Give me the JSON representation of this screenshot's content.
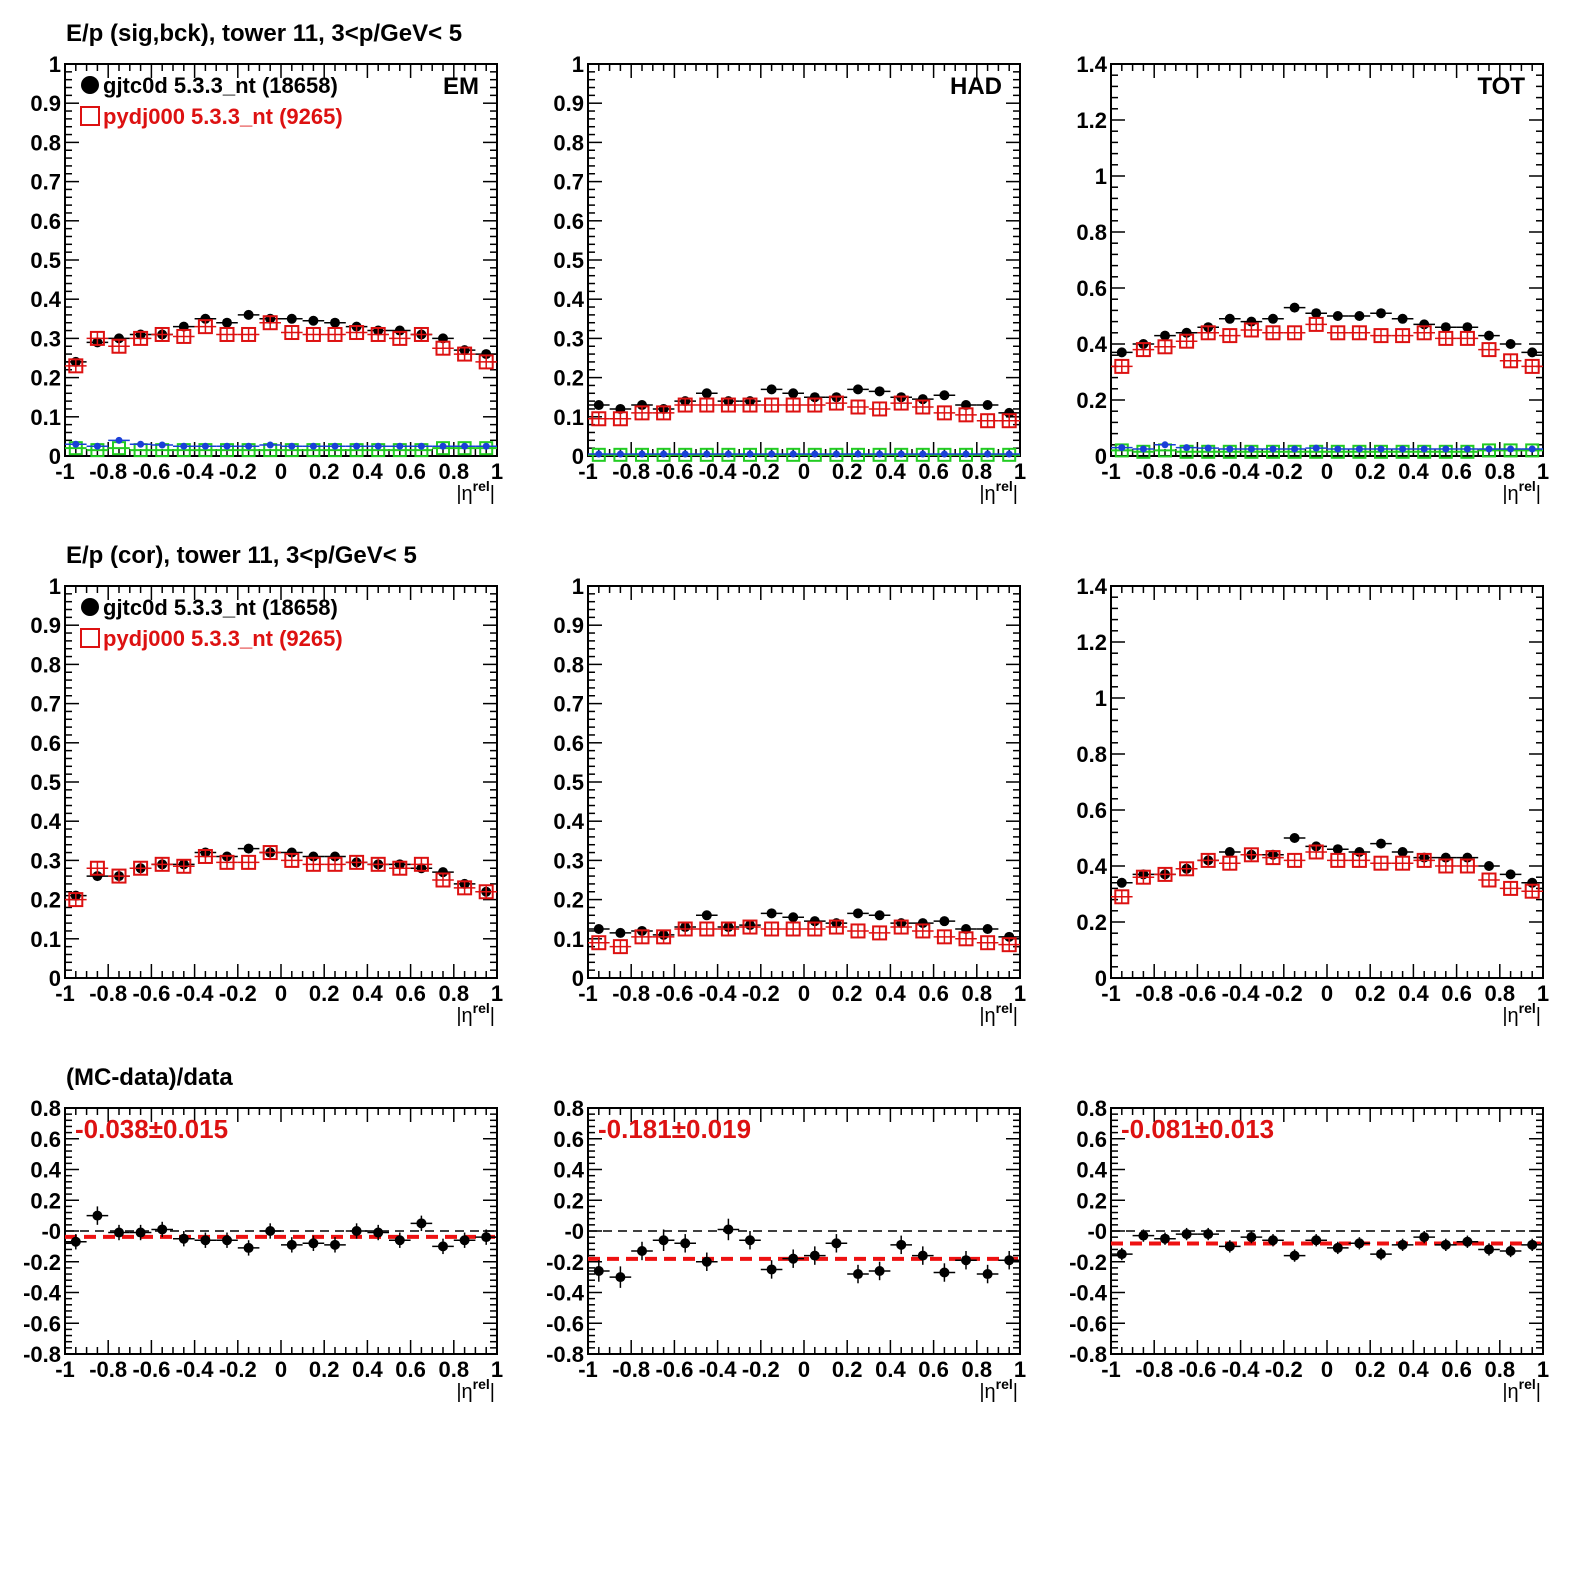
{
  "row_titles": [
    "E/p (sig,bck), tower 11,  3<p/GeV< 5",
    "E/p (cor), tower 11,  3<p/GeV< 5",
    "(MC-data)/data"
  ],
  "colors": {
    "data": "#000000",
    "mc": "#dd1111",
    "bck_data": "#1a3fd8",
    "bck_mc": "#22cc22",
    "fit_line": "#ee1111",
    "zero_line": "#000000"
  },
  "x_axis": {
    "label_main": "|η",
    "label_sup": "rel",
    "label_tail": "|",
    "range": [
      -1,
      1
    ],
    "ticks": [
      "-1",
      "-0.8",
      "-0.6",
      "-0.4",
      "-0.2",
      "0",
      "0.2",
      "0.4",
      "0.6",
      "0.8",
      "1"
    ]
  },
  "legend": {
    "data": "gjtc0d 5.3.3_nt (18658)",
    "mc": "pydj000 5.3.3_nt (9265)"
  },
  "chart_data": [
    {
      "type": "scatter",
      "panel": "sig-bck-EM",
      "label": "EM",
      "legend": true,
      "ylim": [
        0,
        1
      ],
      "ytick_labels": [
        "0",
        "0.1",
        "0.2",
        "0.3",
        "0.4",
        "0.5",
        "0.6",
        "0.7",
        "0.8",
        "0.9",
        "1"
      ],
      "x": [
        -0.95,
        -0.85,
        -0.75,
        -0.65,
        -0.55,
        -0.45,
        -0.35,
        -0.25,
        -0.15,
        -0.05,
        0.05,
        0.15,
        0.25,
        0.35,
        0.45,
        0.55,
        0.65,
        0.75,
        0.85,
        0.95
      ],
      "series": [
        {
          "name": "gjtc0d 5.3.3_nt (18658)",
          "values": [
            0.24,
            0.29,
            0.3,
            0.31,
            0.31,
            0.33,
            0.35,
            0.34,
            0.36,
            0.35,
            0.35,
            0.345,
            0.34,
            0.33,
            0.32,
            0.32,
            0.31,
            0.3,
            0.27,
            0.26
          ]
        },
        {
          "name": "pydj000 5.3.3_nt (9265)",
          "values": [
            0.23,
            0.3,
            0.28,
            0.3,
            0.31,
            0.305,
            0.33,
            0.31,
            0.31,
            0.34,
            0.315,
            0.31,
            0.31,
            0.315,
            0.31,
            0.3,
            0.31,
            0.275,
            0.26,
            0.24
          ]
        },
        {
          "values": [
            0.03,
            0.025,
            0.04,
            0.03,
            0.028,
            0.025,
            0.025,
            0.025,
            0.025,
            0.028,
            0.025,
            0.025,
            0.025,
            0.025,
            0.025,
            0.025,
            0.025,
            0.025,
            0.025,
            0.025
          ]
        },
        {
          "values": [
            0.02,
            0.015,
            0.02,
            0.015,
            0.015,
            0.015,
            0.015,
            0.015,
            0.015,
            0.015,
            0.015,
            0.015,
            0.015,
            0.015,
            0.015,
            0.015,
            0.015,
            0.02,
            0.02,
            0.02
          ]
        }
      ]
    },
    {
      "type": "scatter",
      "panel": "sig-bck-HAD",
      "label": "HAD",
      "legend": false,
      "ylim": [
        0,
        1
      ],
      "ytick_labels": [
        "0",
        "0.1",
        "0.2",
        "0.3",
        "0.4",
        "0.5",
        "0.6",
        "0.7",
        "0.8",
        "0.9",
        "1"
      ],
      "x": [
        -0.95,
        -0.85,
        -0.75,
        -0.65,
        -0.55,
        -0.45,
        -0.35,
        -0.25,
        -0.15,
        -0.05,
        0.05,
        0.15,
        0.25,
        0.35,
        0.45,
        0.55,
        0.65,
        0.75,
        0.85,
        0.95
      ],
      "series": [
        {
          "name": "gjtc0d 5.3.3_nt (18658)",
          "values": [
            0.13,
            0.12,
            0.13,
            0.12,
            0.14,
            0.16,
            0.14,
            0.14,
            0.17,
            0.16,
            0.15,
            0.15,
            0.17,
            0.165,
            0.15,
            0.145,
            0.155,
            0.13,
            0.13,
            0.11
          ]
        },
        {
          "name": "pydj000 5.3.3_nt (9265)",
          "values": [
            0.095,
            0.095,
            0.11,
            0.11,
            0.13,
            0.13,
            0.13,
            0.13,
            0.13,
            0.13,
            0.13,
            0.135,
            0.125,
            0.12,
            0.135,
            0.125,
            0.11,
            0.105,
            0.09,
            0.09
          ]
        },
        {
          "values": [
            0.005,
            0.005,
            0.005,
            0.005,
            0.005,
            0.005,
            0.005,
            0.005,
            0.005,
            0.005,
            0.005,
            0.005,
            0.005,
            0.005,
            0.005,
            0.005,
            0.005,
            0.005,
            0.005,
            0.005
          ]
        },
        {
          "values": [
            0.003,
            0.003,
            0.003,
            0.003,
            0.003,
            0.003,
            0.003,
            0.003,
            0.003,
            0.003,
            0.003,
            0.003,
            0.003,
            0.003,
            0.003,
            0.003,
            0.003,
            0.003,
            0.003,
            0.003
          ]
        }
      ]
    },
    {
      "type": "scatter",
      "panel": "sig-bck-TOT",
      "label": "TOT",
      "legend": false,
      "ylim": [
        0,
        1.4
      ],
      "ytick_labels": [
        "0",
        "0.2",
        "0.4",
        "0.6",
        "0.8",
        "1",
        "1.2",
        "1.4"
      ],
      "x": [
        -0.95,
        -0.85,
        -0.75,
        -0.65,
        -0.55,
        -0.45,
        -0.35,
        -0.25,
        -0.15,
        -0.05,
        0.05,
        0.15,
        0.25,
        0.35,
        0.45,
        0.55,
        0.65,
        0.75,
        0.85,
        0.95
      ],
      "series": [
        {
          "name": "gjtc0d 5.3.3_nt (18658)",
          "values": [
            0.37,
            0.4,
            0.43,
            0.44,
            0.46,
            0.49,
            0.48,
            0.49,
            0.53,
            0.51,
            0.5,
            0.5,
            0.51,
            0.49,
            0.47,
            0.46,
            0.46,
            0.43,
            0.4,
            0.37
          ]
        },
        {
          "name": "pydj000 5.3.3_nt (9265)",
          "values": [
            0.32,
            0.38,
            0.39,
            0.41,
            0.44,
            0.43,
            0.45,
            0.44,
            0.44,
            0.47,
            0.44,
            0.44,
            0.43,
            0.43,
            0.44,
            0.42,
            0.42,
            0.38,
            0.34,
            0.32
          ]
        },
        {
          "values": [
            0.03,
            0.025,
            0.04,
            0.03,
            0.028,
            0.025,
            0.025,
            0.025,
            0.025,
            0.028,
            0.025,
            0.025,
            0.025,
            0.025,
            0.025,
            0.025,
            0.025,
            0.025,
            0.025,
            0.025
          ]
        },
        {
          "values": [
            0.02,
            0.015,
            0.02,
            0.015,
            0.015,
            0.015,
            0.015,
            0.015,
            0.015,
            0.015,
            0.015,
            0.015,
            0.015,
            0.015,
            0.015,
            0.015,
            0.015,
            0.02,
            0.02,
            0.02
          ]
        }
      ]
    },
    {
      "type": "scatter",
      "panel": "cor-EM",
      "label": "",
      "legend": true,
      "ylim": [
        0,
        1
      ],
      "ytick_labels": [
        "0",
        "0.1",
        "0.2",
        "0.3",
        "0.4",
        "0.5",
        "0.6",
        "0.7",
        "0.8",
        "0.9",
        "1"
      ],
      "x": [
        -0.95,
        -0.85,
        -0.75,
        -0.65,
        -0.55,
        -0.45,
        -0.35,
        -0.25,
        -0.15,
        -0.05,
        0.05,
        0.15,
        0.25,
        0.35,
        0.45,
        0.55,
        0.65,
        0.75,
        0.85,
        0.95
      ],
      "series": [
        {
          "name": "gjtc0d 5.3.3_nt (18658)",
          "values": [
            0.21,
            0.26,
            0.26,
            0.28,
            0.29,
            0.29,
            0.32,
            0.31,
            0.33,
            0.32,
            0.32,
            0.31,
            0.31,
            0.295,
            0.29,
            0.29,
            0.28,
            0.27,
            0.24,
            0.22
          ]
        },
        {
          "name": "pydj000 5.3.3_nt (9265)",
          "values": [
            0.2,
            0.28,
            0.26,
            0.28,
            0.29,
            0.285,
            0.31,
            0.295,
            0.295,
            0.32,
            0.3,
            0.29,
            0.29,
            0.295,
            0.29,
            0.28,
            0.29,
            0.25,
            0.23,
            0.22
          ]
        }
      ]
    },
    {
      "type": "scatter",
      "panel": "cor-HAD",
      "label": "",
      "legend": false,
      "ylim": [
        0,
        1
      ],
      "ytick_labels": [
        "0",
        "0.1",
        "0.2",
        "0.3",
        "0.4",
        "0.5",
        "0.6",
        "0.7",
        "0.8",
        "0.9",
        "1"
      ],
      "x": [
        -0.95,
        -0.85,
        -0.75,
        -0.65,
        -0.55,
        -0.45,
        -0.35,
        -0.25,
        -0.15,
        -0.05,
        0.05,
        0.15,
        0.25,
        0.35,
        0.45,
        0.55,
        0.65,
        0.75,
        0.85,
        0.95
      ],
      "series": [
        {
          "name": "gjtc0d 5.3.3_nt (18658)",
          "values": [
            0.125,
            0.115,
            0.12,
            0.11,
            0.13,
            0.16,
            0.13,
            0.135,
            0.165,
            0.155,
            0.145,
            0.14,
            0.165,
            0.16,
            0.14,
            0.14,
            0.145,
            0.125,
            0.125,
            0.105
          ]
        },
        {
          "name": "pydj000 5.3.3_nt (9265)",
          "values": [
            0.09,
            0.08,
            0.105,
            0.105,
            0.125,
            0.125,
            0.125,
            0.13,
            0.125,
            0.125,
            0.125,
            0.13,
            0.12,
            0.115,
            0.13,
            0.12,
            0.105,
            0.1,
            0.09,
            0.085
          ]
        }
      ]
    },
    {
      "type": "scatter",
      "panel": "cor-TOT",
      "label": "",
      "legend": false,
      "ylim": [
        0,
        1.4
      ],
      "ytick_labels": [
        "0",
        "0.2",
        "0.4",
        "0.6",
        "0.8",
        "1",
        "1.2",
        "1.4"
      ],
      "x": [
        -0.95,
        -0.85,
        -0.75,
        -0.65,
        -0.55,
        -0.45,
        -0.35,
        -0.25,
        -0.15,
        -0.05,
        0.05,
        0.15,
        0.25,
        0.35,
        0.45,
        0.55,
        0.65,
        0.75,
        0.85,
        0.95
      ],
      "series": [
        {
          "name": "gjtc0d 5.3.3_nt (18658)",
          "values": [
            0.34,
            0.37,
            0.37,
            0.39,
            0.42,
            0.45,
            0.44,
            0.44,
            0.5,
            0.47,
            0.46,
            0.45,
            0.48,
            0.45,
            0.43,
            0.43,
            0.43,
            0.4,
            0.37,
            0.34
          ]
        },
        {
          "name": "pydj000 5.3.3_nt (9265)",
          "values": [
            0.29,
            0.36,
            0.37,
            0.39,
            0.42,
            0.41,
            0.44,
            0.43,
            0.42,
            0.45,
            0.42,
            0.42,
            0.41,
            0.41,
            0.42,
            0.4,
            0.4,
            0.35,
            0.32,
            0.31
          ]
        }
      ]
    },
    {
      "type": "scatter",
      "panel": "ratio-EM",
      "label": "",
      "legend": false,
      "ylim": [
        -0.8,
        0.8
      ],
      "ytick_labels": [
        "-0.8",
        "-0.6",
        "-0.4",
        "-0.2",
        "-0",
        "0.2",
        "0.4",
        "0.6",
        "0.8"
      ],
      "x": [
        -0.95,
        -0.85,
        -0.75,
        -0.65,
        -0.55,
        -0.45,
        -0.35,
        -0.25,
        -0.15,
        -0.05,
        0.05,
        0.15,
        0.25,
        0.35,
        0.45,
        0.55,
        0.65,
        0.75,
        0.85,
        0.95
      ],
      "series": [
        {
          "values": [
            -0.07,
            0.1,
            -0.01,
            -0.01,
            0.01,
            -0.05,
            -0.06,
            -0.06,
            -0.11,
            0.0,
            -0.09,
            -0.08,
            -0.09,
            0.0,
            -0.01,
            -0.06,
            0.05,
            -0.1,
            -0.06,
            -0.04
          ]
        }
      ],
      "errors": [
        0.05,
        0.06,
        0.05,
        0.05,
        0.05,
        0.05,
        0.05,
        0.05,
        0.05,
        0.05,
        0.05,
        0.05,
        0.05,
        0.05,
        0.05,
        0.05,
        0.05,
        0.05,
        0.05,
        0.05
      ],
      "fit_value": -0.038,
      "fit_text": "-0.038±0.015"
    },
    {
      "type": "scatter",
      "panel": "ratio-HAD",
      "label": "",
      "legend": false,
      "ylim": [
        -0.8,
        0.8
      ],
      "ytick_labels": [
        "-0.8",
        "-0.6",
        "-0.4",
        "-0.2",
        "-0",
        "0.2",
        "0.4",
        "0.6",
        "0.8"
      ],
      "x": [
        -0.95,
        -0.85,
        -0.75,
        -0.65,
        -0.55,
        -0.45,
        -0.35,
        -0.25,
        -0.15,
        -0.05,
        0.05,
        0.15,
        0.25,
        0.35,
        0.45,
        0.55,
        0.65,
        0.75,
        0.85,
        0.95
      ],
      "series": [
        {
          "values": [
            -0.26,
            -0.3,
            -0.13,
            -0.06,
            -0.08,
            -0.2,
            0.01,
            -0.06,
            -0.25,
            -0.18,
            -0.16,
            -0.08,
            -0.28,
            -0.26,
            -0.09,
            -0.16,
            -0.27,
            -0.19,
            -0.28,
            -0.19
          ]
        }
      ],
      "errors": [
        0.07,
        0.07,
        0.06,
        0.07,
        0.06,
        0.06,
        0.07,
        0.06,
        0.06,
        0.06,
        0.06,
        0.06,
        0.06,
        0.06,
        0.06,
        0.06,
        0.06,
        0.06,
        0.06,
        0.06
      ],
      "fit_value": -0.181,
      "fit_text": "-0.181±0.019"
    },
    {
      "type": "scatter",
      "panel": "ratio-TOT",
      "label": "",
      "legend": false,
      "ylim": [
        -0.8,
        0.8
      ],
      "ytick_labels": [
        "-0.8",
        "-0.6",
        "-0.4",
        "-0.2",
        "-0",
        "0.2",
        "0.4",
        "0.6",
        "0.8"
      ],
      "x": [
        -0.95,
        -0.85,
        -0.75,
        -0.65,
        -0.55,
        -0.45,
        -0.35,
        -0.25,
        -0.15,
        -0.05,
        0.05,
        0.15,
        0.25,
        0.35,
        0.45,
        0.55,
        0.65,
        0.75,
        0.85,
        0.95
      ],
      "series": [
        {
          "values": [
            -0.15,
            -0.03,
            -0.05,
            -0.02,
            -0.02,
            -0.1,
            -0.04,
            -0.06,
            -0.16,
            -0.06,
            -0.11,
            -0.08,
            -0.15,
            -0.09,
            -0.04,
            -0.09,
            -0.07,
            -0.12,
            -0.13,
            -0.09
          ]
        }
      ],
      "errors": [
        0.04,
        0.04,
        0.04,
        0.04,
        0.04,
        0.04,
        0.04,
        0.04,
        0.04,
        0.04,
        0.04,
        0.04,
        0.04,
        0.04,
        0.04,
        0.04,
        0.04,
        0.04,
        0.04,
        0.04
      ],
      "fit_value": -0.081,
      "fit_text": "-0.081±0.013"
    }
  ]
}
